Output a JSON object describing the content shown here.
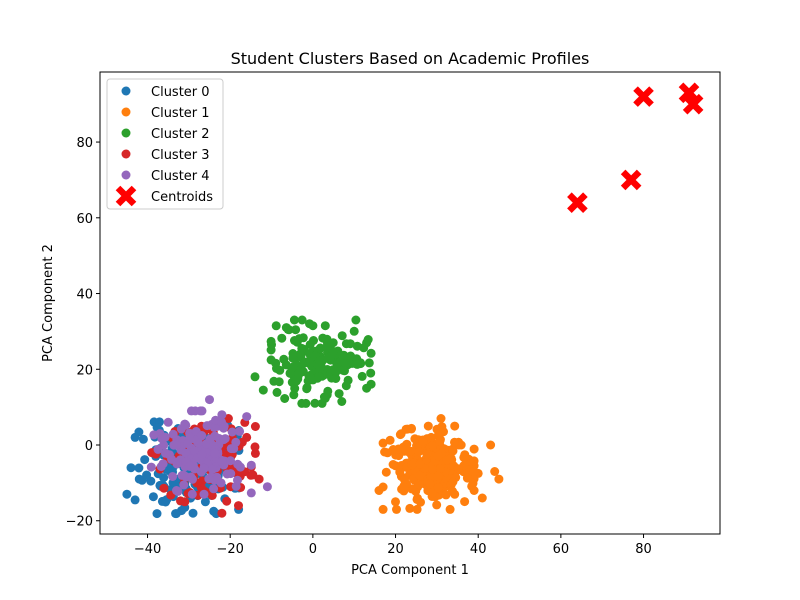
{
  "chart_data": {
    "type": "scatter",
    "title": "Student Clusters Based on Academic Profiles",
    "xlabel": "PCA Component 1",
    "ylabel": "PCA Component 2",
    "xlim": [
      -51.5,
      98.5
    ],
    "ylim": [
      -23.5,
      98.5
    ],
    "xticks": [
      -40,
      -20,
      0,
      20,
      40,
      60,
      80
    ],
    "yticks": [
      -20,
      0,
      20,
      40,
      60,
      80
    ],
    "grid": false,
    "legend_position": "top-left",
    "series": [
      {
        "name": "Cluster 0",
        "color": "#1f77b4",
        "center": [
          -30,
          -6
        ],
        "spread": [
          5.5,
          5.5
        ],
        "count": 150,
        "seed": 11,
        "points": [
          [
            -45,
            -13
          ],
          [
            -44,
            -6
          ],
          [
            -43,
            2
          ],
          [
            -43,
            -14.5
          ],
          [
            -42,
            -9
          ],
          [
            -41,
            1.5
          ],
          [
            -38,
            -3
          ],
          [
            -36,
            -11
          ],
          [
            -31,
            -16.5
          ],
          [
            -29,
            -18
          ],
          [
            -24,
            -17.5
          ],
          [
            -26,
            -15
          ]
        ]
      },
      {
        "name": "Cluster 1",
        "color": "#ff7f0e",
        "center": [
          28,
          -6
        ],
        "spread": [
          5,
          5
        ],
        "count": 230,
        "seed": 23,
        "points": [
          [
            16,
            -12
          ],
          [
            17,
            0.5
          ],
          [
            20,
            -15
          ],
          [
            31,
            7
          ],
          [
            40,
            -7.5
          ],
          [
            41,
            -14
          ],
          [
            44,
            -7
          ],
          [
            45,
            -9
          ],
          [
            43,
            0
          ]
        ]
      },
      {
        "name": "Cluster 2",
        "color": "#2ca02c",
        "center": [
          2,
          22
        ],
        "spread": [
          5.5,
          5
        ],
        "count": 160,
        "seed": 37,
        "points": [
          [
            -14,
            18
          ],
          [
            -12,
            14.5
          ],
          [
            -10,
            26.5
          ],
          [
            -6,
            30.5
          ],
          [
            0,
            31.5
          ],
          [
            3,
            31.5
          ],
          [
            7,
            11.5
          ],
          [
            13,
            27
          ],
          [
            13,
            15
          ],
          [
            14,
            19
          ]
        ]
      },
      {
        "name": "Cluster 3",
        "color": "#d62728",
        "center": [
          -26,
          -4
        ],
        "spread": [
          5.5,
          5
        ],
        "count": 120,
        "seed": 53,
        "points": [
          [
            -39,
            -2
          ],
          [
            -18,
            -16
          ],
          [
            -15,
            -8
          ],
          [
            -13,
            -9
          ],
          [
            -14,
            -0.5
          ],
          [
            -16,
            2
          ],
          [
            -22,
            -18
          ]
        ]
      },
      {
        "name": "Cluster 4",
        "color": "#9467bd",
        "center": [
          -27,
          -2
        ],
        "spread": [
          5.5,
          5
        ],
        "count": 140,
        "seed": 71,
        "points": [
          [
            -25,
            12
          ],
          [
            -22,
            8
          ],
          [
            -16,
            7.5
          ],
          [
            -11,
            -11
          ],
          [
            -35,
            6
          ],
          [
            -37,
            3
          ],
          [
            -33,
            -12
          ]
        ]
      }
    ],
    "centroids": {
      "name": "Centroids",
      "color": "#ff0000",
      "points": [
        [
          64,
          64
        ],
        [
          77,
          70
        ],
        [
          80,
          92
        ],
        [
          91,
          93
        ],
        [
          92,
          90
        ]
      ]
    }
  }
}
